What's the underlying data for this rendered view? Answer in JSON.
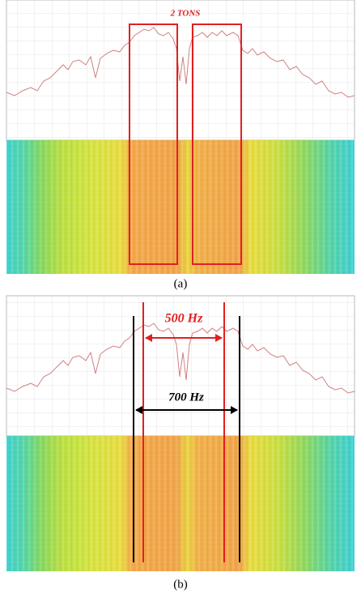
{
  "panels": [
    {
      "annotation": "2 TONS",
      "caption": "(a)"
    },
    {
      "annotations": [
        "500 Hz",
        "700 Hz"
      ],
      "caption": "(b)"
    }
  ]
}
